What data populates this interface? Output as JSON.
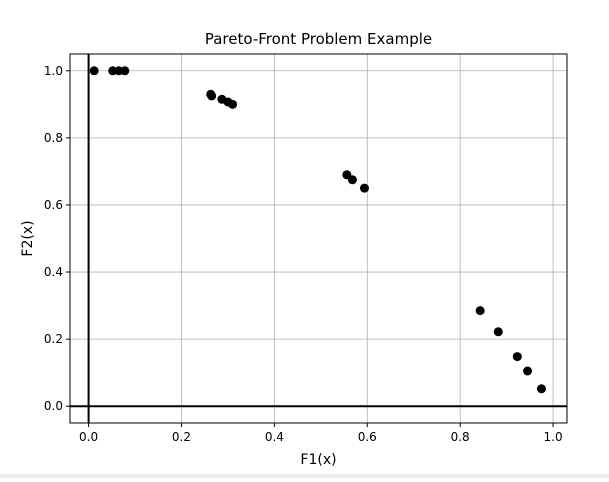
{
  "chart_data": {
    "type": "scatter",
    "title": "Pareto-Front Problem Example",
    "xlabel": "F1(x)",
    "ylabel": "F2(x)",
    "xlim": [
      -0.04,
      1.03
    ],
    "ylim": [
      -0.05,
      1.05
    ],
    "xticks": [
      0.0,
      0.2,
      0.4,
      0.6,
      0.8,
      1.0
    ],
    "xtick_labels": [
      "0.0",
      "0.2",
      "0.4",
      "0.6",
      "0.8",
      "1.0"
    ],
    "yticks": [
      0.0,
      0.2,
      0.4,
      0.6,
      0.8,
      1.0
    ],
    "ytick_labels": [
      "0.0",
      "0.2",
      "0.4",
      "0.6",
      "0.8",
      "1.0"
    ],
    "grid": true,
    "zero_lines": true,
    "marker_color": "#000000",
    "points": [
      {
        "x": 0.012,
        "y": 1.0
      },
      {
        "x": 0.052,
        "y": 1.0
      },
      {
        "x": 0.065,
        "y": 1.0
      },
      {
        "x": 0.078,
        "y": 1.0
      },
      {
        "x": 0.263,
        "y": 0.93
      },
      {
        "x": 0.265,
        "y": 0.925
      },
      {
        "x": 0.287,
        "y": 0.915
      },
      {
        "x": 0.3,
        "y": 0.907
      },
      {
        "x": 0.31,
        "y": 0.9
      },
      {
        "x": 0.556,
        "y": 0.69
      },
      {
        "x": 0.568,
        "y": 0.675
      },
      {
        "x": 0.594,
        "y": 0.65
      },
      {
        "x": 0.843,
        "y": 0.285
      },
      {
        "x": 0.882,
        "y": 0.222
      },
      {
        "x": 0.923,
        "y": 0.148
      },
      {
        "x": 0.945,
        "y": 0.105
      },
      {
        "x": 0.975,
        "y": 0.052
      }
    ]
  }
}
